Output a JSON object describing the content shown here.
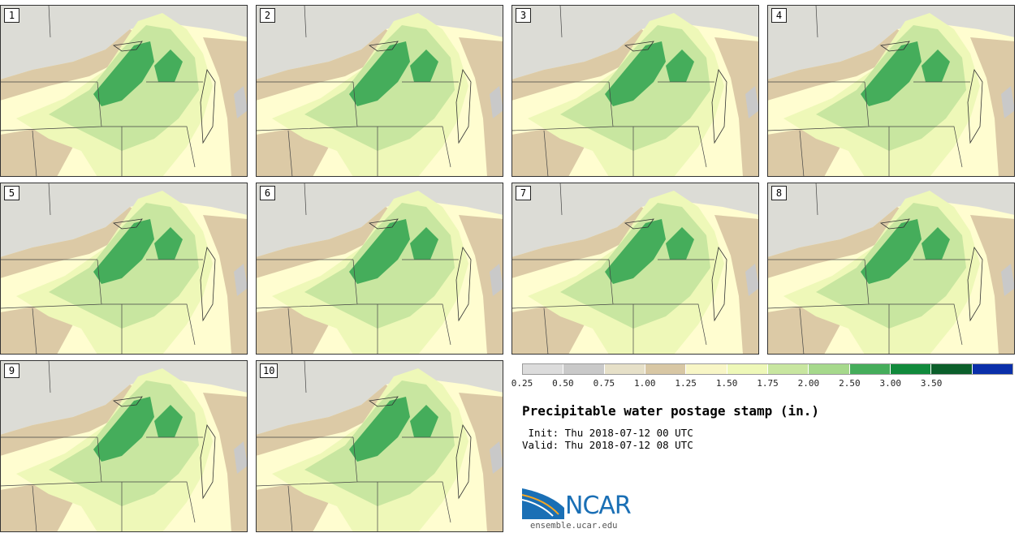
{
  "panels": [
    {
      "label": "1"
    },
    {
      "label": "2"
    },
    {
      "label": "3"
    },
    {
      "label": "4"
    },
    {
      "label": "5"
    },
    {
      "label": "6"
    },
    {
      "label": "7"
    },
    {
      "label": "8"
    },
    {
      "label": "9"
    },
    {
      "label": "10"
    }
  ],
  "colorbar": {
    "ticks": [
      "0.25",
      "0.50",
      "0.75",
      "1.00",
      "1.25",
      "1.50",
      "1.75",
      "2.00",
      "2.50",
      "3.00",
      "3.50"
    ],
    "colors": [
      "#dcdcdc",
      "#c9c9c9",
      "#e6e0c8",
      "#d8c7a4",
      "#f8f6c6",
      "#eef8b8",
      "#c8e6a0",
      "#a6d98c",
      "#45ad5b",
      "#118a3c",
      "#0b5f2b",
      "#0a2faa"
    ]
  },
  "title": "Precipitable water postage stamp (in.)",
  "init": " Init: Thu 2018-07-12 00 UTC",
  "valid": "Valid: Thu 2018-07-12 08 UTC",
  "logo": {
    "text": "NCAR",
    "url": "ensemble.ucar.edu"
  }
}
